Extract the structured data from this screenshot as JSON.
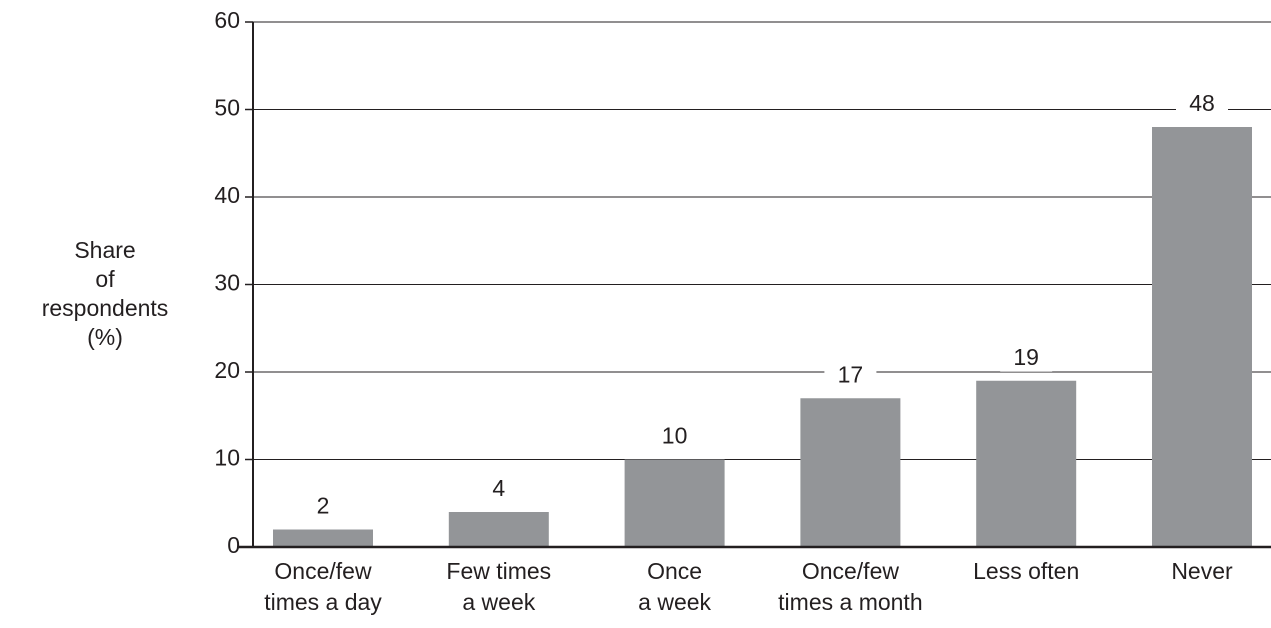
{
  "chart_data": {
    "type": "bar",
    "y_label": [
      "Share",
      "of",
      "respondents",
      "(%)"
    ],
    "categories": [
      [
        "Once/few",
        "times a day"
      ],
      [
        "Few times",
        "a week"
      ],
      [
        "Once",
        "a week"
      ],
      [
        "Once/few",
        "times a month"
      ],
      [
        "Less often"
      ],
      [
        "Never"
      ]
    ],
    "values": [
      2,
      4,
      10,
      17,
      19,
      48
    ],
    "color": "#939598",
    "ylim": [
      0,
      60
    ],
    "yticks": [
      0,
      10,
      20,
      30,
      40,
      50,
      60
    ],
    "grid": true
  }
}
